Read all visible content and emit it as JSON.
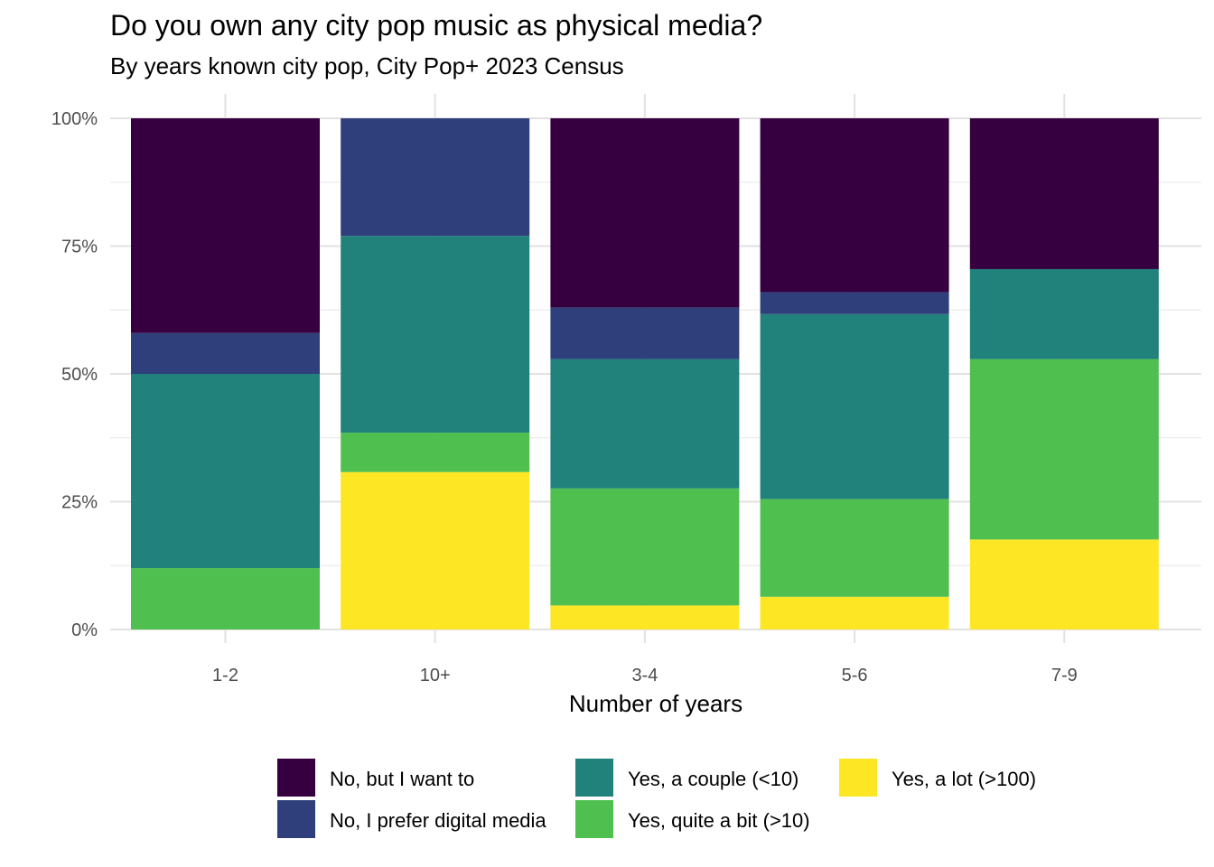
{
  "chart_data": {
    "type": "bar",
    "stacked": true,
    "normalized": true,
    "title": "Do you own any city pop music as physical media?",
    "subtitle": "By years known city pop, City Pop+ 2023 Census",
    "xlabel": "Number of years",
    "ylabel": "",
    "ylim": [
      0,
      1
    ],
    "yticks": [
      0,
      0.25,
      0.5,
      0.75,
      1
    ],
    "ytick_labels": [
      "0%",
      "25%",
      "50%",
      "75%",
      "100%"
    ],
    "grid": true,
    "legend_position": "bottom",
    "categories": [
      "1-2",
      "10+",
      "3-4",
      "5-6",
      "7-9"
    ],
    "series": [
      {
        "name": "Yes, a lot (>100)",
        "color": "#FDE725",
        "values": [
          0.0,
          0.308,
          0.047,
          0.064,
          0.176
        ]
      },
      {
        "name": "Yes, quite a bit (>10)",
        "color": "#4FBF50",
        "values": [
          0.12,
          0.077,
          0.229,
          0.191,
          0.353
        ]
      },
      {
        "name": "Yes, a couple (<10)",
        "color": "#21817B",
        "values": [
          0.38,
          0.385,
          0.253,
          0.362,
          0.176
        ]
      },
      {
        "name": "No, I prefer digital media",
        "color": "#2F3F7B",
        "values": [
          0.08,
          0.23,
          0.101,
          0.043,
          0.0
        ]
      },
      {
        "name": "No, but I want to",
        "color": "#360040",
        "values": [
          0.42,
          0.0,
          0.37,
          0.34,
          0.295
        ]
      }
    ],
    "legend_order": [
      "No, but I want to",
      "No, I prefer digital media",
      "Yes, a couple (<10)",
      "Yes, quite a bit (>10)",
      "Yes, a lot (>100)"
    ]
  }
}
